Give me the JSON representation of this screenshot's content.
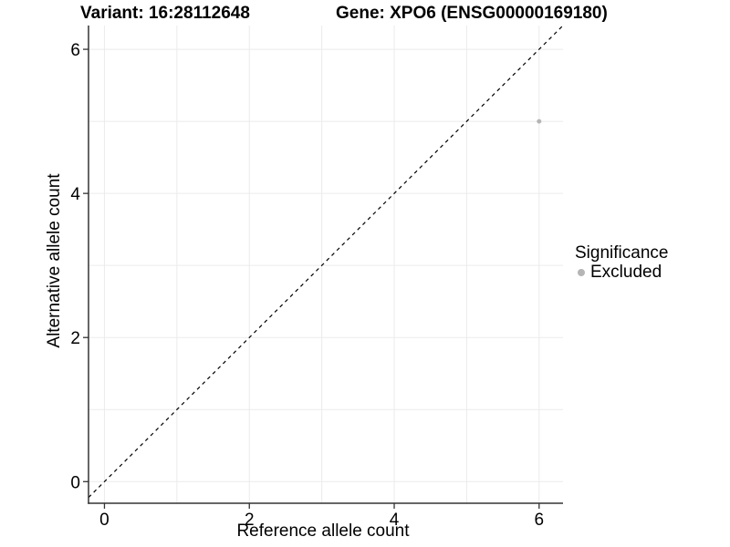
{
  "chart_data": {
    "type": "scatter",
    "title_variant": "Variant: 16:28112648",
    "title_gene": "Gene: XPO6 (ENSG00000169180)",
    "xlabel": "Reference allele count",
    "ylabel": "Alternative allele count",
    "xlim": [
      -0.22,
      6.33
    ],
    "ylim": [
      -0.3,
      6.33
    ],
    "x_ticks": [
      0,
      2,
      4,
      6
    ],
    "y_ticks": [
      0,
      2,
      4,
      6
    ],
    "grid": true,
    "grid_interval": 1,
    "identity_line": {
      "style": "dashed",
      "equation": "y = x",
      "color": "#000000"
    },
    "points": [
      {
        "x": 6,
        "y": 5,
        "significance": "Excluded"
      }
    ],
    "legend": {
      "position": "right",
      "title": "Significance",
      "items": [
        {
          "label": "Excluded",
          "color": "#b5b5b5"
        }
      ]
    },
    "colors": {
      "background": "#ffffff",
      "grid": "#ebebeb",
      "axis": "#333333",
      "text": "#000000",
      "point": "#b5b5b5"
    }
  }
}
